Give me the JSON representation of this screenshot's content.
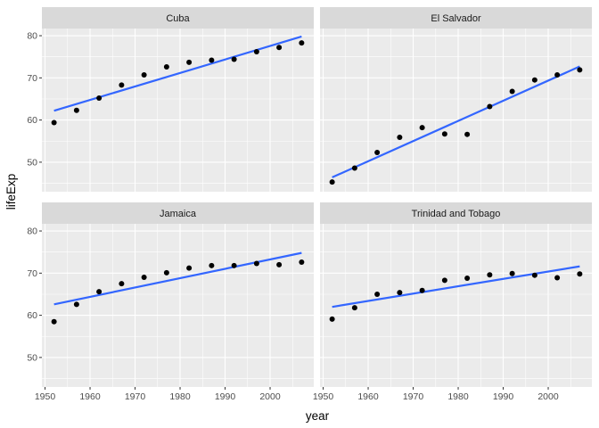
{
  "chart_data": {
    "type": "scatter",
    "xlabel": "year",
    "ylabel": "lifeExp",
    "xlim": [
      1949.3,
      2009.7
    ],
    "ylim": [
      43.0,
      81.7
    ],
    "x_ticks": [
      1950,
      1960,
      1970,
      1980,
      1990,
      2000
    ],
    "y_ticks": [
      50,
      60,
      70,
      80
    ],
    "grid": true,
    "trend": "linear",
    "colors": {
      "panel_bg": "#ebebeb",
      "grid": "#ffffff",
      "strip_bg": "#d9d9d9",
      "point": "#000000",
      "trend_line": "#3366ff"
    },
    "facets": [
      {
        "name": "Cuba",
        "x": [
          1952,
          1957,
          1962,
          1967,
          1972,
          1977,
          1982,
          1987,
          1992,
          1997,
          2002,
          2007
        ],
        "y": [
          59.4,
          62.3,
          65.2,
          68.3,
          70.7,
          72.6,
          73.7,
          74.2,
          74.4,
          76.2,
          77.2,
          78.3
        ],
        "trend": [
          [
            1952,
            62.2
          ],
          [
            2007,
            79.8
          ]
        ]
      },
      {
        "name": "El Salvador",
        "x": [
          1952,
          1957,
          1962,
          1967,
          1972,
          1977,
          1982,
          1987,
          1992,
          1997,
          2002,
          2007
        ],
        "y": [
          45.3,
          48.6,
          52.3,
          55.9,
          58.2,
          56.7,
          56.6,
          63.2,
          66.8,
          69.5,
          70.7,
          71.9
        ],
        "trend": [
          [
            1952,
            46.4
          ],
          [
            2007,
            72.7
          ]
        ]
      },
      {
        "name": "Jamaica",
        "x": [
          1952,
          1957,
          1962,
          1967,
          1972,
          1977,
          1982,
          1987,
          1992,
          1997,
          2002,
          2007
        ],
        "y": [
          58.5,
          62.6,
          65.6,
          67.5,
          69.0,
          70.1,
          71.2,
          71.8,
          71.8,
          72.3,
          72.0,
          72.6
        ],
        "trend": [
          [
            1952,
            62.6
          ],
          [
            2007,
            74.8
          ]
        ]
      },
      {
        "name": "Trinidad and Tobago",
        "x": [
          1952,
          1957,
          1962,
          1967,
          1972,
          1977,
          1982,
          1987,
          1992,
          1997,
          2002,
          2007
        ],
        "y": [
          59.1,
          61.8,
          65.0,
          65.4,
          65.9,
          68.3,
          68.8,
          69.6,
          69.9,
          69.5,
          68.9,
          69.8
        ],
        "trend": [
          [
            1952,
            62.0
          ],
          [
            2007,
            71.6
          ]
        ]
      }
    ]
  }
}
